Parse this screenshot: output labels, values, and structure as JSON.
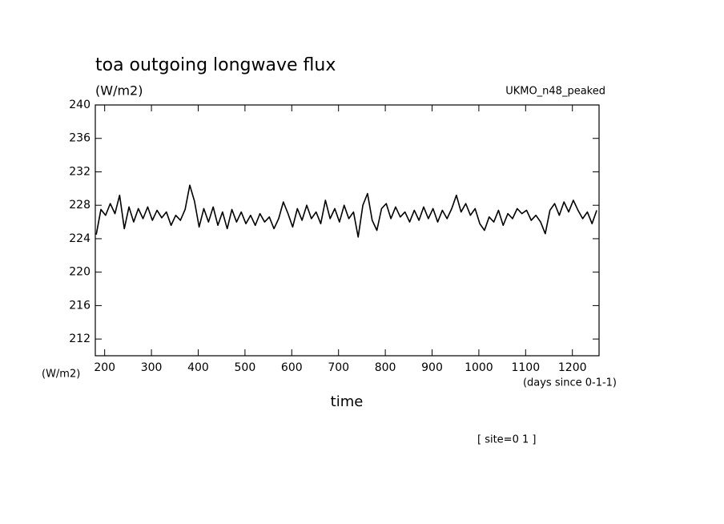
{
  "chart_data": {
    "type": "line",
    "title": "toa outgoing longwave flux",
    "y_unit": "(W/m2)",
    "y_unit_bottom": "(W/m2)",
    "subtitle": "UKMO_n48_peaked",
    "xlabel": "time",
    "x_unit": "(days since 0-1-1)",
    "annotation": "[ site=0 1 ]",
    "xlim": [
      180,
      1257
    ],
    "ylim": [
      210,
      240
    ],
    "xticks": [
      200,
      300,
      400,
      500,
      600,
      700,
      800,
      900,
      1000,
      1100,
      1200
    ],
    "yticks": [
      212,
      216,
      220,
      224,
      228,
      232,
      236,
      240
    ],
    "x": [
      182,
      192,
      202,
      212,
      222,
      232,
      242,
      252,
      262,
      272,
      282,
      292,
      302,
      312,
      322,
      332,
      342,
      352,
      362,
      372,
      382,
      392,
      402,
      412,
      422,
      432,
      442,
      452,
      462,
      472,
      482,
      492,
      502,
      512,
      522,
      532,
      542,
      552,
      562,
      572,
      582,
      592,
      602,
      612,
      622,
      632,
      642,
      652,
      662,
      672,
      682,
      692,
      702,
      712,
      722,
      732,
      742,
      752,
      762,
      772,
      782,
      792,
      802,
      812,
      822,
      832,
      842,
      852,
      862,
      872,
      882,
      892,
      902,
      912,
      922,
      932,
      942,
      952,
      962,
      972,
      982,
      992,
      1002,
      1012,
      1022,
      1032,
      1042,
      1052,
      1062,
      1072,
      1082,
      1092,
      1102,
      1112,
      1122,
      1132,
      1142,
      1152,
      1162,
      1172,
      1182,
      1192,
      1202,
      1212,
      1222,
      1232,
      1242,
      1252
    ],
    "series": [
      {
        "color": "#000000",
        "values": [
          224.5,
          227.5,
          226.8,
          228.2,
          227,
          229.2,
          225.2,
          227.8,
          226,
          227.6,
          226.4,
          227.8,
          226.2,
          227.4,
          226.5,
          227.2,
          225.6,
          226.8,
          226.2,
          227.5,
          230.4,
          228.5,
          225.4,
          227.6,
          226,
          227.8,
          225.6,
          227.2,
          225.2,
          227.5,
          226,
          227.2,
          225.8,
          226.8,
          225.6,
          227,
          226,
          226.6,
          225.2,
          226.4,
          228.4,
          227,
          225.4,
          227.6,
          226.2,
          228,
          226.4,
          227.2,
          225.8,
          228.6,
          226.4,
          227.6,
          226,
          228,
          226.4,
          227.2,
          224.2,
          228,
          229.4,
          226.2,
          225,
          227.6,
          228.2,
          226.4,
          227.8,
          226.6,
          227.2,
          226,
          227.4,
          226.2,
          227.8,
          226.4,
          227.6,
          226,
          227.4,
          226.4,
          227.6,
          229.2,
          227.2,
          228.2,
          226.8,
          227.6,
          225.8,
          225,
          226.6,
          226,
          227.4,
          225.6,
          227,
          226.4,
          227.6,
          227,
          227.4,
          226.2,
          226.8,
          226,
          224.6,
          227.4,
          228.2,
          226.8,
          228.4,
          227.2,
          228.6,
          227.4,
          226.4,
          227.2,
          225.8,
          227.4
        ]
      }
    ]
  }
}
